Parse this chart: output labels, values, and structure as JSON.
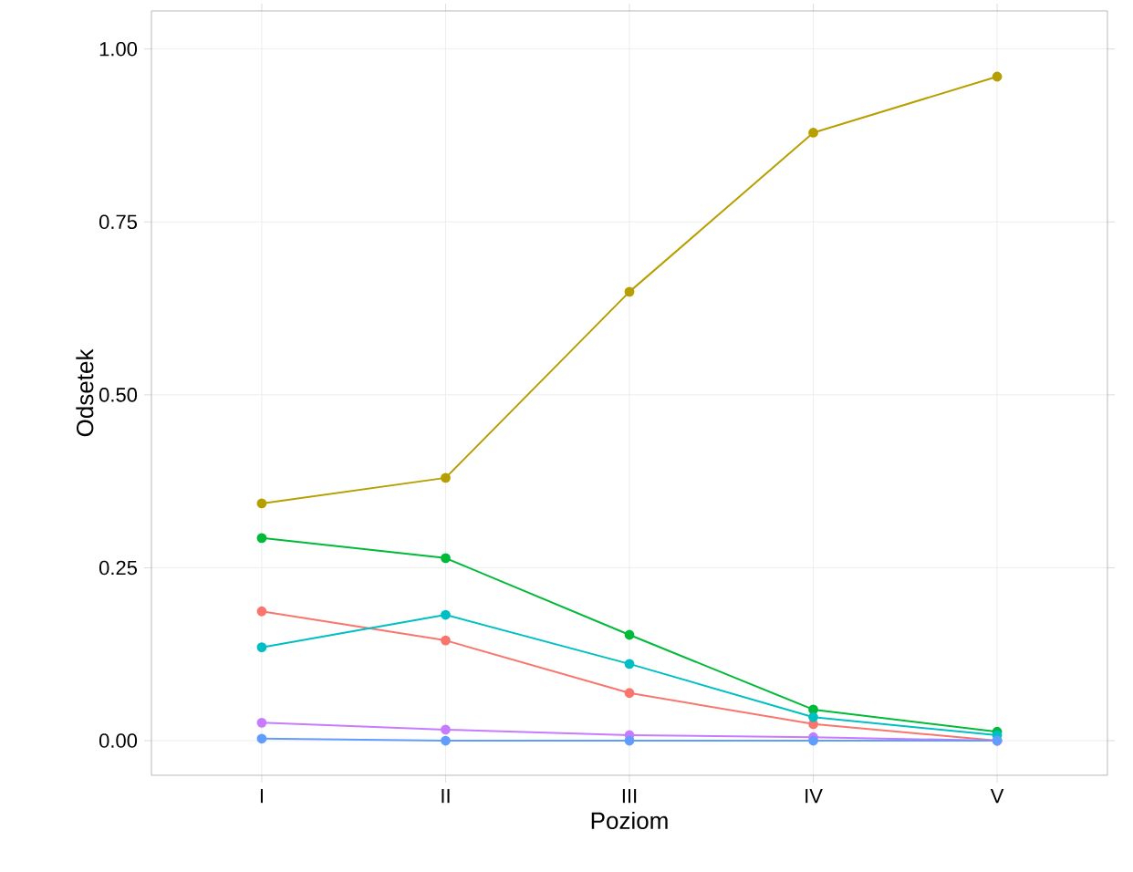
{
  "chart_data": {
    "type": "line",
    "xlabel": "Poziom",
    "ylabel": "Odsetek",
    "categories": [
      "I",
      "II",
      "III",
      "IV",
      "V"
    ],
    "series": [
      {
        "color": "#B79F00",
        "values": [
          0.343,
          0.38,
          0.649,
          0.879,
          0.96
        ]
      },
      {
        "color": "#00BA38",
        "values": [
          0.293,
          0.264,
          0.153,
          0.045,
          0.013
        ]
      },
      {
        "color": "#F8766D",
        "values": [
          0.187,
          0.145,
          0.069,
          0.024,
          0.0
        ]
      },
      {
        "color": "#00BFC4",
        "values": [
          0.135,
          0.182,
          0.111,
          0.034,
          0.008
        ]
      },
      {
        "color": "#C77CFF",
        "values": [
          0.026,
          0.016,
          0.008,
          0.005,
          0.0
        ]
      },
      {
        "color": "#619CFF",
        "values": [
          0.003,
          0.0,
          0.0,
          0.0,
          0.0
        ]
      }
    ],
    "ylim": [
      -0.05,
      1.055
    ],
    "yticks": [
      {
        "value": 0,
        "label": "0.00"
      },
      {
        "value": 0.25,
        "label": "0.25"
      },
      {
        "value": 0.5,
        "label": "0.50"
      },
      {
        "value": 0.75,
        "label": "0.75"
      },
      {
        "value": 1.0,
        "label": "1.00"
      }
    ],
    "grid": true,
    "marker": "circle",
    "line_style": "solid"
  }
}
